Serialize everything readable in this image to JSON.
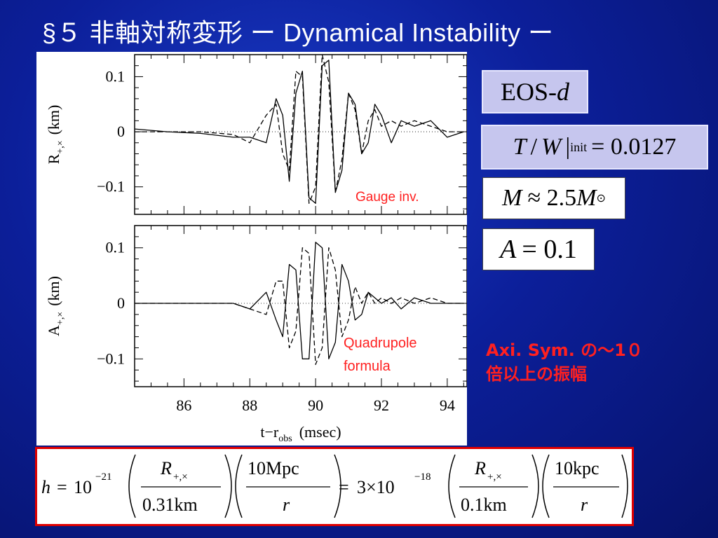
{
  "slide": {
    "title": "§５ 非軸対称変形 ー Dynamical Instability ー"
  },
  "params": {
    "eos_main": "EOS-",
    "eos_italic": "d",
    "tw_T": "T",
    "tw_slash": "/",
    "tw_W": "W",
    "tw_bar": "|",
    "tw_sub": "init",
    "tw_eq": "= 0.0127",
    "mass_M": "M",
    "mass_approx": "≈ 2.5",
    "mass_M2": "M",
    "mass_sub": "⊙",
    "amp_A": "A",
    "amp_eq": "= 0.1"
  },
  "note": {
    "line1": "Axi. Sym. の～1０",
    "line2": "倍以上の振幅"
  },
  "formula": {
    "h": "h",
    "eq1": "=",
    "ten1": "10",
    "exp1": "−21",
    "R1": "R",
    "R1sub": "+,×",
    "den1": "0.31km",
    "num2": "10Mpc",
    "den2": "r",
    "eq2": "=",
    "three": "3×10",
    "exp2": "−18",
    "R3": "R",
    "R3sub": "+,×",
    "den3": "0.1km",
    "num4": "10kpc",
    "den4": "r"
  },
  "chart_data": {
    "type": "line",
    "panels": [
      {
        "ylabel": "R",
        "ylabel_sub": "+,×",
        "ylabel_unit": "(km)",
        "yticks": [
          "0.1",
          "0",
          "−0.1"
        ],
        "ylim": [
          -0.15,
          0.14
        ],
        "annotation": "Gauge  inv.",
        "series": [
          {
            "style": "solid",
            "x": [
              84.5,
              85.5,
              86.5,
              87.5,
              88.0,
              88.5,
              88.8,
              89.0,
              89.2,
              89.4,
              89.6,
              89.8,
              90.0,
              90.2,
              90.4,
              90.6,
              90.8,
              91.0,
              91.2,
              91.4,
              91.6,
              91.8,
              92.0,
              92.3,
              92.6,
              93.0,
              93.5,
              94.0,
              94.5
            ],
            "y": [
              0.005,
              0.0,
              -0.003,
              -0.01,
              -0.01,
              -0.02,
              0.06,
              0.03,
              -0.09,
              0.07,
              0.11,
              -0.12,
              -0.13,
              0.12,
              0.13,
              -0.11,
              -0.07,
              0.07,
              0.05,
              -0.04,
              -0.02,
              0.05,
              0.03,
              -0.02,
              0.02,
              0.01,
              0.02,
              -0.01,
              0.0
            ]
          },
          {
            "style": "dashed",
            "x": [
              84.5,
              85.5,
              86.5,
              87.5,
              88.0,
              88.5,
              88.8,
              89.0,
              89.2,
              89.4,
              89.6,
              89.8,
              90.0,
              90.2,
              90.4,
              90.6,
              90.8,
              91.0,
              91.2,
              91.4,
              91.6,
              91.8,
              92.0,
              92.3,
              92.6,
              93.0,
              93.5,
              94.0,
              94.5
            ],
            "y": [
              0.0,
              0.0,
              0.0,
              -0.005,
              -0.02,
              0.03,
              0.05,
              -0.04,
              -0.07,
              0.11,
              0.1,
              -0.13,
              -0.1,
              0.14,
              0.09,
              -0.11,
              -0.05,
              0.07,
              0.04,
              -0.04,
              0.02,
              0.04,
              0.01,
              0.02,
              0.01,
              0.02,
              0.01,
              0.0,
              0.0
            ]
          }
        ]
      },
      {
        "ylabel": "A",
        "ylabel_sub": "+,×",
        "ylabel_unit": "(km)",
        "yticks": [
          "0.1",
          "0",
          "−0.1"
        ],
        "ylim": [
          -0.15,
          0.14
        ],
        "annotation_line1": "Quadrupole",
        "annotation_line2": "formula",
        "series": [
          {
            "style": "solid",
            "x": [
              84.5,
              85.5,
              86.5,
              87.5,
              88.0,
              88.5,
              88.8,
              89.0,
              89.2,
              89.4,
              89.6,
              89.8,
              90.0,
              90.2,
              90.4,
              90.6,
              90.8,
              91.0,
              91.2,
              91.4,
              91.6,
              91.8,
              92.0,
              92.3,
              92.6,
              93.0,
              93.5,
              94.0,
              94.5
            ],
            "y": [
              0.0,
              0.0,
              0.0,
              0.0,
              -0.01,
              0.02,
              -0.03,
              -0.06,
              0.07,
              0.06,
              -0.1,
              -0.1,
              0.11,
              0.1,
              -0.1,
              -0.07,
              0.07,
              0.04,
              -0.03,
              -0.02,
              0.02,
              0.01,
              0.0,
              0.01,
              -0.01,
              0.01,
              0.0,
              0.0,
              0.0
            ]
          },
          {
            "style": "dashed",
            "x": [
              84.5,
              85.5,
              86.5,
              87.5,
              88.0,
              88.5,
              88.8,
              89.0,
              89.2,
              89.4,
              89.6,
              89.8,
              90.0,
              90.2,
              90.4,
              90.6,
              90.8,
              91.0,
              91.2,
              91.4,
              91.6,
              91.8,
              92.0,
              92.3,
              92.6,
              93.0,
              93.5,
              94.0,
              94.5
            ],
            "y": [
              0.0,
              0.0,
              0.0,
              0.0,
              -0.01,
              -0.02,
              0.04,
              0.04,
              -0.08,
              -0.05,
              0.1,
              0.09,
              -0.11,
              -0.08,
              0.1,
              0.06,
              -0.06,
              -0.03,
              0.03,
              0.0,
              0.02,
              0.0,
              0.01,
              0.0,
              0.01,
              0.0,
              0.01,
              0.0,
              0.0
            ]
          }
        ]
      }
    ],
    "xticks": [
      86,
      88,
      90,
      92,
      94
    ],
    "xlim": [
      84.5,
      94.6
    ],
    "xlabel": "t−r",
    "xlabel_sub": "obs",
    "xlabel_unit": "(msec)",
    "grid": false
  }
}
